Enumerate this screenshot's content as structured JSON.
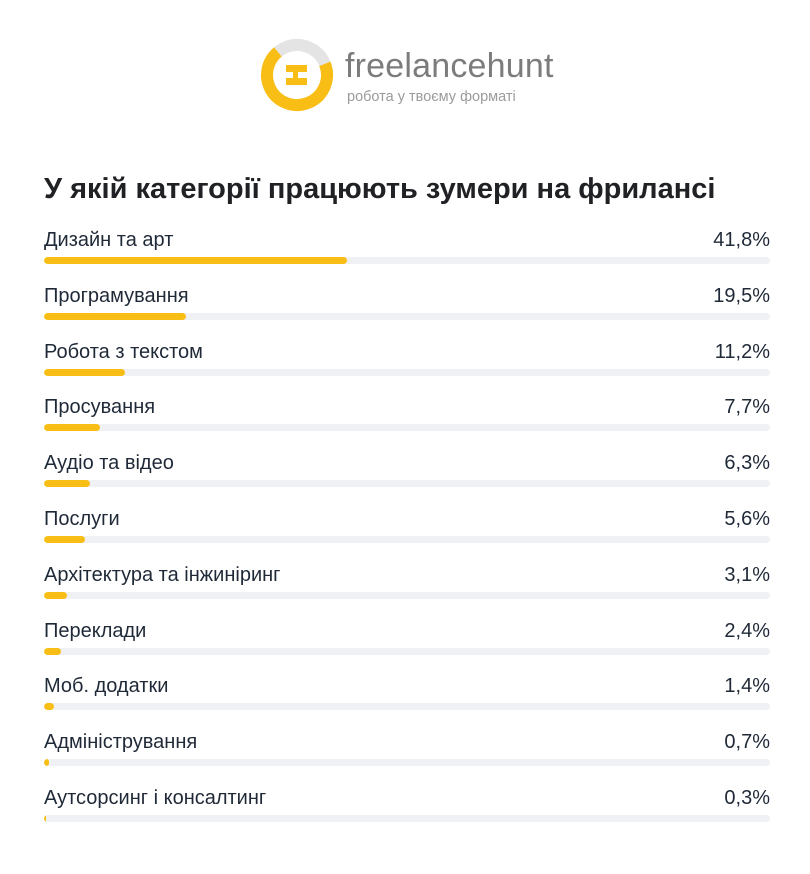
{
  "brand": {
    "name": "freelancehunt",
    "tagline": "робота у твоєму форматі",
    "accent_color": "#f8be15",
    "logo_icon": "freelancehunt-logo-icon"
  },
  "chart_data": {
    "type": "bar",
    "title": "У якій категорії працюють зумери на фрилансі",
    "categories": [
      "Дизайн та арт",
      "Програмування",
      "Робота з текстом",
      "Просування",
      "Аудіо та відео",
      "Послуги",
      "Архітектура та інжиніринг",
      "Переклади",
      "Моб. додатки",
      "Адміністрування",
      "Аутсорсинг і консалтинг"
    ],
    "values": [
      41.8,
      19.5,
      11.2,
      7.7,
      6.3,
      5.6,
      3.1,
      2.4,
      1.4,
      0.7,
      0.3
    ],
    "value_labels": [
      "41,8%",
      "19,5%",
      "11,2%",
      "7,7%",
      "6,3%",
      "5,6%",
      "3,1%",
      "2,4%",
      "1,4%",
      "0,7%",
      "0,3%"
    ],
    "xlim": [
      0,
      100
    ],
    "xlabel": "",
    "ylabel": "",
    "grid": false,
    "bar_color": "#f8be15",
    "track_color": "#f0f1f5"
  }
}
